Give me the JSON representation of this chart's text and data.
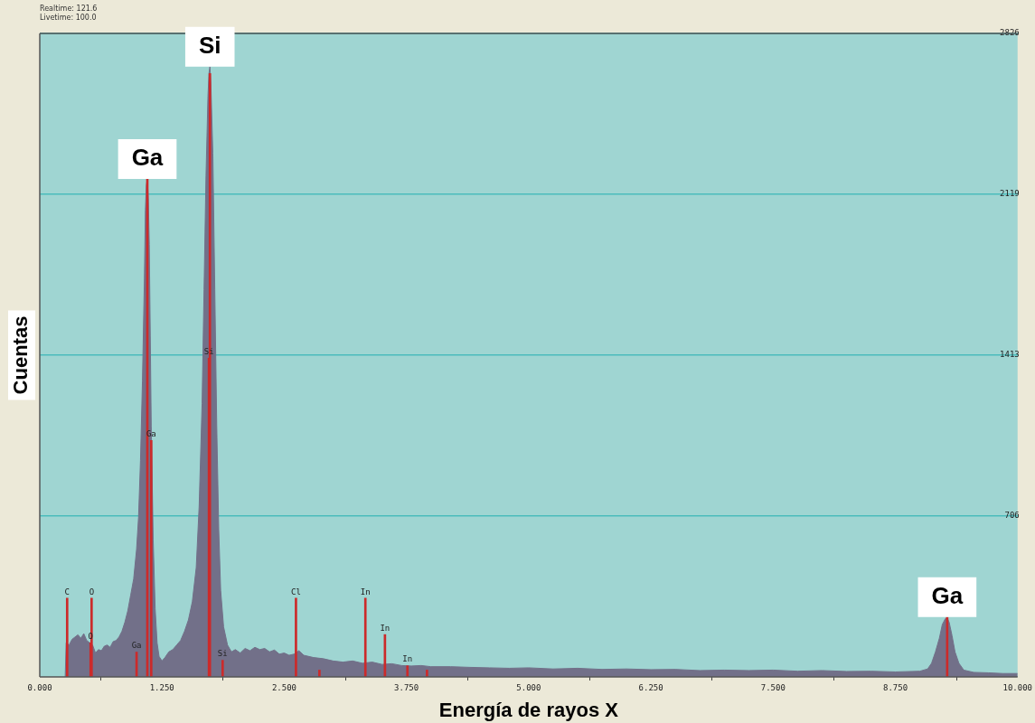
{
  "chart_data": {
    "type": "area",
    "xlabel": "Energía de rayos X",
    "ylabel": "Cuentas",
    "annotations": [
      "Realtime: 121.6",
      "Livetime: 100.0",
      {
        "text": "Si",
        "x": 1.74,
        "y": 2680
      },
      {
        "text": "Ga",
        "x": 1.1,
        "y": 2187
      },
      {
        "text": "Ga",
        "x": 9.28,
        "y": 263
      }
    ],
    "xlim": [
      0,
      10
    ],
    "xticks": [
      {
        "value": 0,
        "label": "0.000"
      },
      {
        "value": 1.25,
        "label": "1.250"
      },
      {
        "value": 2.5,
        "label": "2.500"
      },
      {
        "value": 3.75,
        "label": "3.750"
      },
      {
        "value": 5,
        "label": "5.000"
      },
      {
        "value": 6.25,
        "label": "6.250"
      },
      {
        "value": 7.5,
        "label": "7.500"
      },
      {
        "value": 8.75,
        "label": "8.750"
      },
      {
        "value": 10,
        "label": "10.000"
      }
    ],
    "ylim": [
      0,
      2826
    ],
    "yticks": [
      706,
      1413,
      2119,
      2826
    ],
    "grid": "y",
    "series": [
      {
        "color": "#727089",
        "x": [
          0.26,
          0.27,
          0.3,
          0.33,
          0.36,
          0.39,
          0.42,
          0.45,
          0.48,
          0.51,
          0.54,
          0.57,
          0.6,
          0.63,
          0.66,
          0.69,
          0.72,
          0.75,
          0.78,
          0.81,
          0.84,
          0.87,
          0.9,
          0.93,
          0.96,
          0.99,
          1.01,
          1.03,
          1.05,
          1.07,
          1.08,
          1.09,
          1.1,
          1.11,
          1.12,
          1.13,
          1.14,
          1.16,
          1.18,
          1.2,
          1.22,
          1.25,
          1.28,
          1.32,
          1.36,
          1.4,
          1.44,
          1.48,
          1.52,
          1.56,
          1.6,
          1.63,
          1.66,
          1.68,
          1.7,
          1.72,
          1.73,
          1.74,
          1.75,
          1.77,
          1.79,
          1.81,
          1.83,
          1.85,
          1.88,
          1.92,
          1.96,
          2,
          2.05,
          2.1,
          2.15,
          2.2,
          2.25,
          2.3,
          2.35,
          2.4,
          2.45,
          2.5,
          2.55,
          2.6,
          2.65,
          2.7,
          2.8,
          2.9,
          3,
          3.1,
          3.2,
          3.3,
          3.4,
          3.5,
          3.6,
          3.7,
          3.8,
          3.9,
          4,
          4.2,
          4.4,
          4.6,
          4.8,
          5,
          5.25,
          5.5,
          5.75,
          6,
          6.25,
          6.5,
          6.75,
          7,
          7.25,
          7.5,
          7.75,
          8,
          8.25,
          8.5,
          8.75,
          9,
          9.08,
          9.12,
          9.16,
          9.2,
          9.23,
          9.26,
          9.28,
          9.3,
          9.33,
          9.36,
          9.4,
          9.45,
          9.55,
          9.7,
          9.85,
          10
        ],
        "values": [
          0,
          150,
          140,
          165,
          175,
          185,
          170,
          190,
          160,
          150,
          140,
          105,
          120,
          115,
          135,
          140,
          130,
          155,
          160,
          175,
          200,
          240,
          290,
          360,
          430,
          560,
          700,
          950,
          1300,
          1750,
          2050,
          2160,
          2187,
          2100,
          1900,
          1500,
          1100,
          600,
          300,
          150,
          90,
          70,
          85,
          110,
          120,
          140,
          160,
          200,
          250,
          330,
          480,
          750,
          1200,
          1700,
          2200,
          2550,
          2650,
          2680,
          2600,
          2300,
          1700,
          1100,
          650,
          380,
          220,
          140,
          110,
          120,
          105,
          125,
          115,
          130,
          120,
          125,
          110,
          118,
          100,
          105,
          95,
          100,
          115,
          95,
          85,
          80,
          70,
          65,
          70,
          60,
          65,
          55,
          58,
          50,
          48,
          50,
          45,
          45,
          42,
          40,
          38,
          40,
          35,
          38,
          33,
          35,
          32,
          33,
          28,
          30,
          28,
          30,
          25,
          28,
          24,
          25,
          22,
          25,
          35,
          60,
          110,
          170,
          230,
          255,
          260,
          240,
          180,
          110,
          60,
          30,
          20,
          18,
          15,
          15
        ]
      },
      {
        "type": "bar",
        "color": "#cc2a2a",
        "x": [
          0.28,
          0.52,
          0.53,
          0.99,
          1.1,
          1.14,
          1.73,
          1.74,
          1.87,
          2.62,
          2.86,
          3.33,
          3.53,
          3.76,
          3.96,
          9.28
        ],
        "values": [
          346,
          150,
          346,
          109,
          2187,
          1039,
          1400,
          2650,
          73,
          346,
          30,
          346,
          186,
          49,
          30,
          263
        ],
        "value_labels": [
          "C",
          "O",
          "O",
          "Ga",
          null,
          "Ga",
          "Si",
          null,
          "Si",
          "Cl",
          null,
          "In",
          "In",
          "In",
          null,
          null
        ]
      }
    ]
  }
}
